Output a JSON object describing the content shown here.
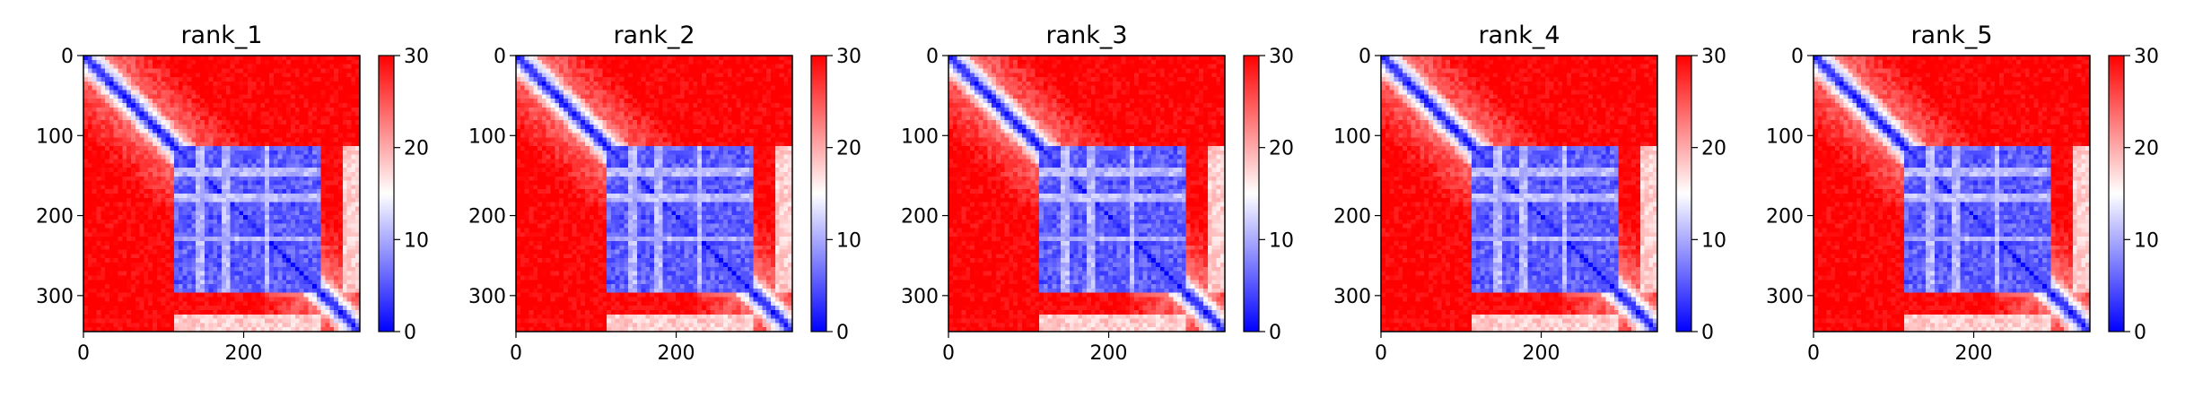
{
  "chart_data": [
    {
      "type": "heatmap",
      "title": "rank_1",
      "x_ticks": [
        0,
        200
      ],
      "y_ticks": [
        0,
        100,
        200,
        300
      ],
      "xlim": [
        0,
        345
      ],
      "ylim": [
        0,
        345
      ],
      "colorbar": {
        "ticks": [
          0,
          10,
          20,
          30
        ],
        "range": [
          0,
          30
        ],
        "colormap": "bwr"
      }
    },
    {
      "type": "heatmap",
      "title": "rank_2",
      "x_ticks": [
        0,
        200
      ],
      "y_ticks": [
        0,
        100,
        200,
        300
      ],
      "xlim": [
        0,
        345
      ],
      "ylim": [
        0,
        345
      ],
      "colorbar": {
        "ticks": [
          0,
          10,
          20,
          30
        ],
        "range": [
          0,
          30
        ],
        "colormap": "bwr"
      }
    },
    {
      "type": "heatmap",
      "title": "rank_3",
      "x_ticks": [
        0,
        200
      ],
      "y_ticks": [
        0,
        100,
        200,
        300
      ],
      "xlim": [
        0,
        345
      ],
      "ylim": [
        0,
        345
      ],
      "colorbar": {
        "ticks": [
          0,
          10,
          20,
          30
        ],
        "range": [
          0,
          30
        ],
        "colormap": "bwr"
      }
    },
    {
      "type": "heatmap",
      "title": "rank_4",
      "x_ticks": [
        0,
        200
      ],
      "y_ticks": [
        0,
        100,
        200,
        300
      ],
      "xlim": [
        0,
        345
      ],
      "ylim": [
        0,
        345
      ],
      "colorbar": {
        "ticks": [
          0,
          10,
          20,
          30
        ],
        "range": [
          0,
          30
        ],
        "colormap": "bwr"
      }
    },
    {
      "type": "heatmap",
      "title": "rank_5",
      "x_ticks": [
        0,
        200
      ],
      "y_ticks": [
        0,
        100,
        200,
        300
      ],
      "xlim": [
        0,
        345
      ],
      "ylim": [
        0,
        345
      ],
      "colorbar": {
        "ticks": [
          0,
          10,
          20,
          30
        ],
        "range": [
          0,
          30
        ],
        "colormap": "bwr"
      }
    }
  ],
  "colors": {
    "high": "#ff0000",
    "mid": "#ffffff",
    "low": "#0000ff",
    "background": "#ffffff",
    "axis": "#000000"
  }
}
